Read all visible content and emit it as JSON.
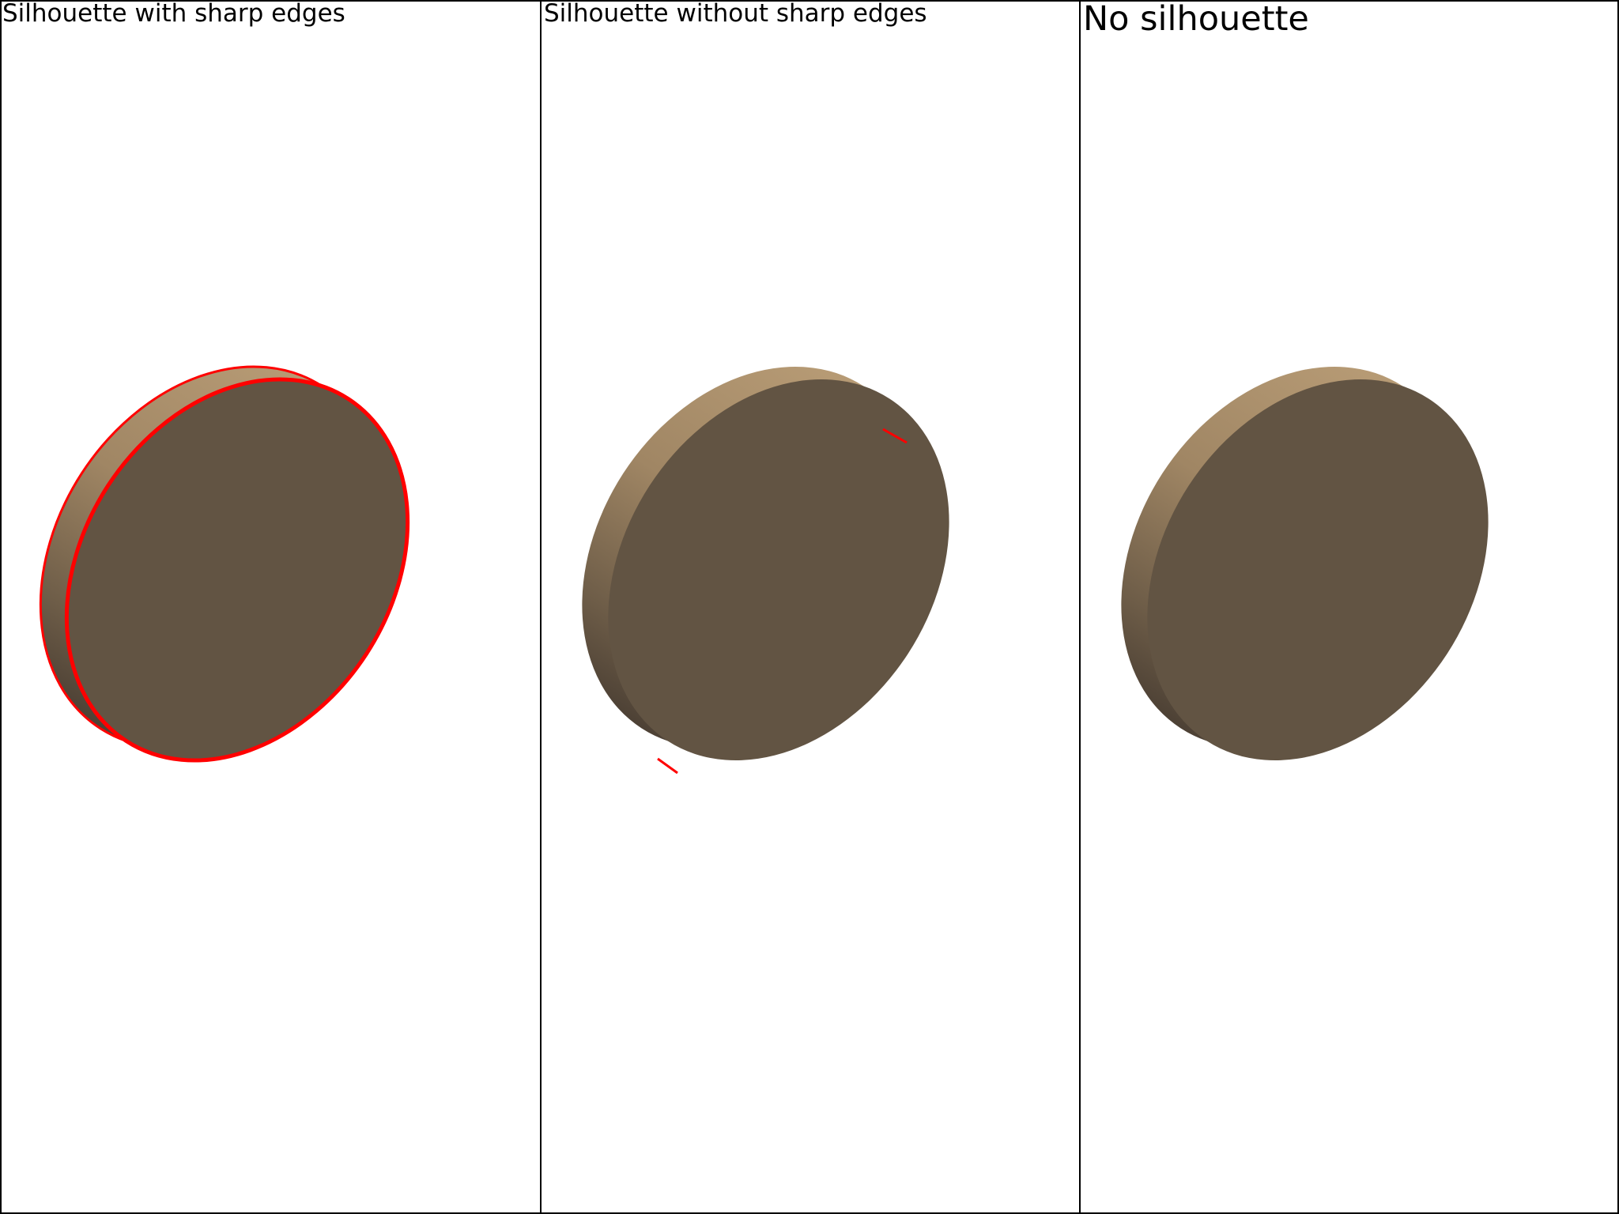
{
  "viewports": [
    {
      "title": "Silhouette with sharp edges",
      "silhouette": "sharp-edges",
      "outline_color": "#ff0000"
    },
    {
      "title": "Silhouette without sharp edges",
      "silhouette": "outer-only",
      "outline_color": "#ff0000"
    },
    {
      "title": "No silhouette",
      "silhouette": "none",
      "outline_color": null
    }
  ],
  "object": {
    "shape": "cylinder-disk",
    "face_color": "#625443",
    "rim_light_color": "#b79b75",
    "rim_dark_color": "#4d4135"
  },
  "background_color": "#ffffff"
}
